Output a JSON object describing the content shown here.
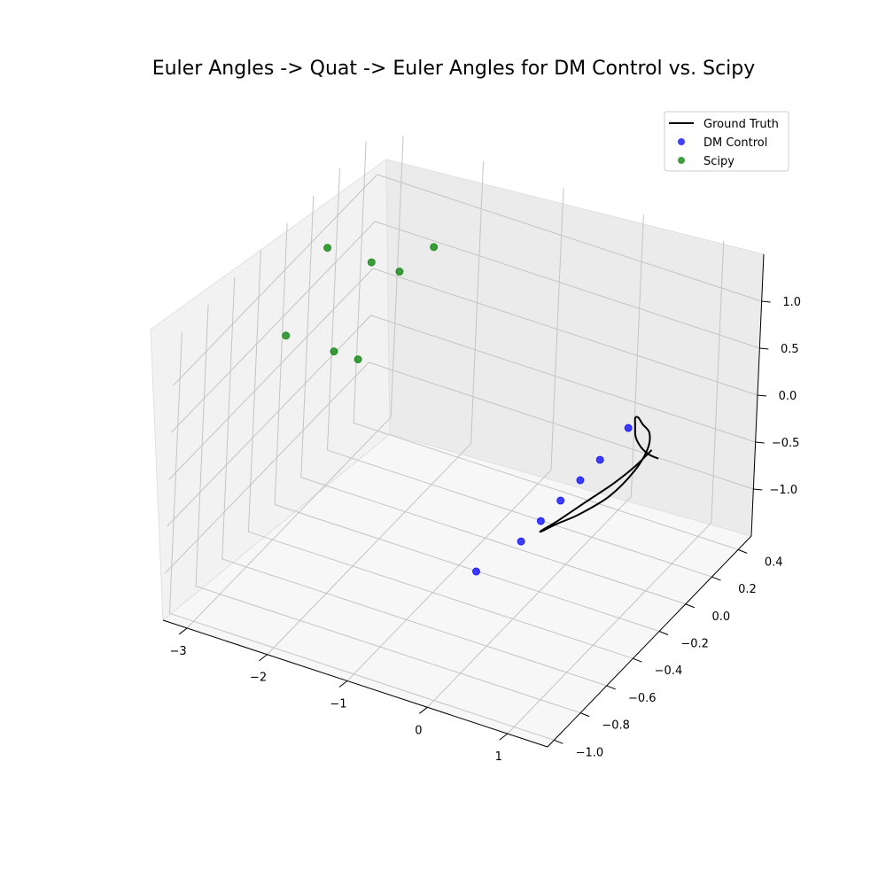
{
  "chart_data": {
    "type": "scatter",
    "title": "Euler Angles -> Quat -> Euler Angles for DM Control vs. Scipy",
    "projection": "3d",
    "grid": true,
    "legend_placement": "top-right",
    "xlim": [
      -3.3,
      1.5
    ],
    "ylim": [
      -1.05,
      0.5
    ],
    "zlim": [
      -1.5,
      1.5
    ],
    "x_ticks": [
      -3,
      -2,
      -1,
      0,
      1
    ],
    "y_ticks": [
      -1.0,
      -0.8,
      -0.6,
      -0.4,
      -0.2,
      0.0,
      0.2,
      0.4
    ],
    "z_ticks": [
      -1.0,
      -0.5,
      0.0,
      0.5,
      1.0
    ],
    "x_tick_labels": [
      "−3",
      "−2",
      "−1",
      "0",
      "1"
    ],
    "y_tick_labels": [
      "−1.0",
      "−0.8",
      "−0.6",
      "−0.4",
      "−0.2",
      "0.0",
      "0.2",
      "0.4"
    ],
    "z_tick_labels": [
      "−1.0",
      "−0.5",
      "0.0",
      "0.5",
      "1.0"
    ],
    "series": [
      {
        "name": "Ground Truth",
        "kind": "line",
        "color": "#000000",
        "x": [
          1.0,
          0.95,
          0.82,
          0.6,
          0.35,
          0.12,
          0.01,
          0.02,
          0.15,
          0.35,
          0.52,
          0.64,
          0.7,
          0.72,
          0.74,
          0.78,
          0.86,
          0.95,
          1.05,
          1.15,
          1.24
        ],
        "y": [
          0.0,
          -0.1,
          -0.18,
          -0.26,
          -0.3,
          -0.28,
          -0.2,
          -0.1,
          0.0,
          0.1,
          0.18,
          0.2,
          0.17,
          0.1,
          0.05,
          0.0,
          -0.05,
          -0.1,
          -0.12,
          -0.12,
          -0.1
        ],
        "z": [
          0.0,
          -0.05,
          -0.15,
          -0.3,
          -0.5,
          -0.7,
          -0.85,
          -0.92,
          -0.92,
          -0.82,
          -0.62,
          -0.38,
          -0.15,
          0.05,
          0.2,
          0.28,
          0.3,
          0.27,
          0.22,
          0.17,
          0.12
        ]
      },
      {
        "name": "DM Control",
        "kind": "scatter",
        "color": "#0000ff",
        "x": [
          0.7,
          0.6,
          0.6,
          0.6,
          0.6,
          0.6,
          0.45
        ],
        "y": [
          0.0,
          -0.15,
          -0.3,
          -0.45,
          -0.6,
          -0.75,
          -1.0
        ],
        "z": [
          0.15,
          0.0,
          0.0,
          0.0,
          0.0,
          0.0,
          0.0
        ]
      },
      {
        "name": "Scipy",
        "kind": "scatter",
        "color": "#008000",
        "x": [
          -3.1,
          -3.1,
          -2.55,
          -2.5,
          -2.2,
          -2.2,
          -2.1
        ],
        "y": [
          0.0,
          -0.3,
          0.0,
          -0.3,
          0.0,
          -0.3,
          0.2
        ],
        "z": [
          1.0,
          0.5,
          1.0,
          0.5,
          1.0,
          0.5,
          1.0
        ]
      }
    ]
  }
}
